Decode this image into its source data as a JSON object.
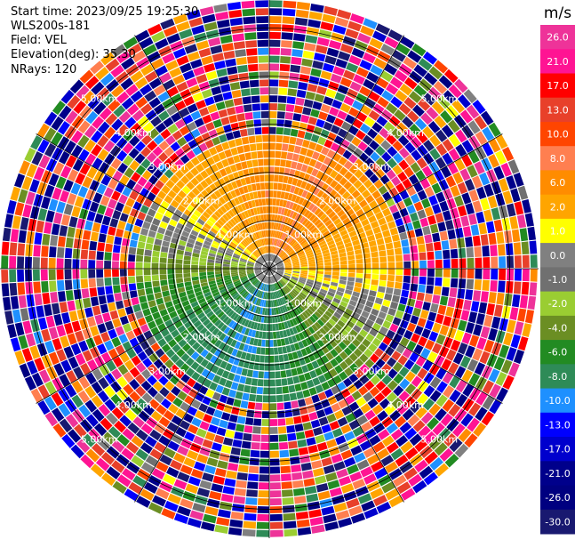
{
  "info": {
    "start_time": "Start time: 2023/09/25 19:25:30",
    "instrument": "WLS200s-181",
    "field": "Field: VEL",
    "elevation": "Elevation(deg): 35.30",
    "nrays": "NRays: 120"
  },
  "chart_data": {
    "type": "heatmap",
    "projection": "polar-ppi",
    "field": "VEL",
    "units": "m/s",
    "nrays": 120,
    "range_rings_km": [
      1.0,
      2.0,
      3.0,
      4.0,
      5.0
    ],
    "ring_labels": [
      "1.00km",
      "2.00km",
      "3.00km",
      "4.00km",
      "5.00km"
    ],
    "max_range_km": 5.6,
    "colorbar": {
      "unit": "m/s",
      "vmin": -30.0,
      "vmax": 30.0,
      "ticks": [
        "26.0",
        "21.0",
        "17.0",
        "13.0",
        "10.0",
        "8.0",
        "6.0",
        "2.0",
        "1.0",
        "0.0",
        "-1.0",
        "-2.0",
        "-4.0",
        "-6.0",
        "-8.0",
        "-10.0",
        "-13.0",
        "-17.0",
        "-21.0",
        "-26.0",
        "-30.0"
      ],
      "bins": [
        {
          "from": 26,
          "to": 30,
          "color": "#ee3399"
        },
        {
          "from": 21,
          "to": 26,
          "color": "#ff1493"
        },
        {
          "from": 17,
          "to": 21,
          "color": "#ff0000"
        },
        {
          "from": 13,
          "to": 17,
          "color": "#e8402a"
        },
        {
          "from": 10,
          "to": 13,
          "color": "#ff4500"
        },
        {
          "from": 8,
          "to": 10,
          "color": "#ff7f50"
        },
        {
          "from": 6,
          "to": 8,
          "color": "#ff8c00"
        },
        {
          "from": 2,
          "to": 6,
          "color": "#ffa500"
        },
        {
          "from": 1,
          "to": 2,
          "color": "#ffff00"
        },
        {
          "from": 0,
          "to": 1,
          "color": "#808080"
        },
        {
          "from": -1,
          "to": 0,
          "color": "#707070"
        },
        {
          "from": -2,
          "to": -1,
          "color": "#9acd32"
        },
        {
          "from": -4,
          "to": -2,
          "color": "#6b8e23"
        },
        {
          "from": -6,
          "to": -4,
          "color": "#228b22"
        },
        {
          "from": -8,
          "to": -6,
          "color": "#2e8b57"
        },
        {
          "from": -10,
          "to": -8,
          "color": "#1e90ff"
        },
        {
          "from": -13,
          "to": -10,
          "color": "#0000ff"
        },
        {
          "from": -17,
          "to": -13,
          "color": "#0000cd"
        },
        {
          "from": -21,
          "to": -17,
          "color": "#00008b"
        },
        {
          "from": -26,
          "to": -21,
          "color": "#000080"
        },
        {
          "from": -30,
          "to": -26,
          "color": "#191970"
        }
      ]
    }
  }
}
